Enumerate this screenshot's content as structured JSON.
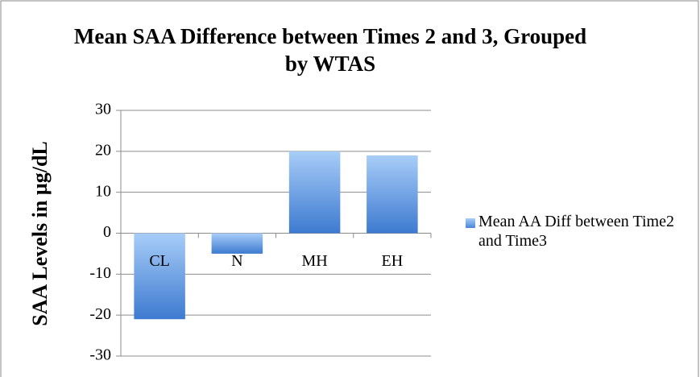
{
  "chart_data": {
    "type": "bar",
    "title": "Mean SAA Difference between Times 2 and 3, Grouped by WTAS",
    "y_label": "SAA Levels in µg/dL",
    "categories": [
      "CL",
      "N",
      "MH",
      "EH"
    ],
    "series": [
      {
        "name": "Mean AA Diff between Time2 and Time3",
        "color": "#4a86d8",
        "values": [
          -21,
          -5,
          20,
          19
        ]
      }
    ],
    "ylim": [
      -30,
      30
    ],
    "yticks": [
      -30,
      -20,
      -10,
      0,
      10,
      20,
      30
    ],
    "grid": true,
    "legend": "right"
  }
}
